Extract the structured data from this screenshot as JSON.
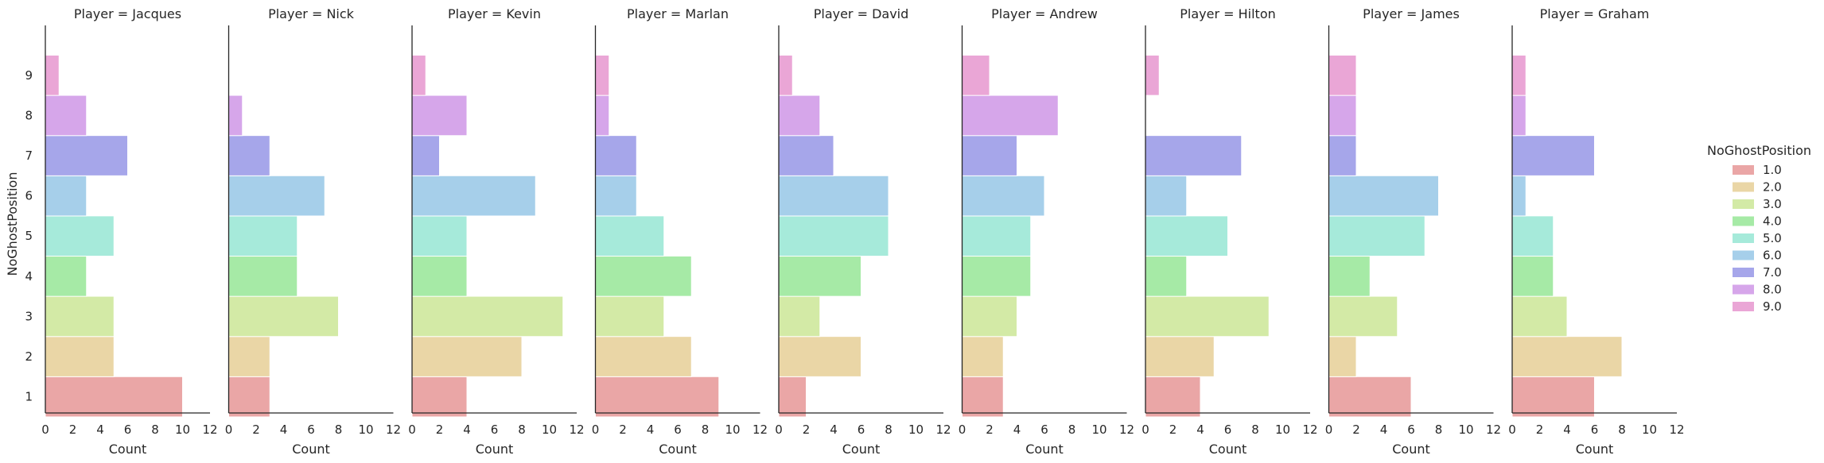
{
  "chart_data": {
    "type": "bar",
    "orientation": "horizontal",
    "facet_title_prefix": "Player = ",
    "ylabel": "NoGhostPosition",
    "xlabel": "Count",
    "xlim": [
      0,
      12
    ],
    "x_ticks": [
      0,
      2,
      4,
      6,
      8,
      10,
      12
    ],
    "y_ticks": [
      1,
      2,
      3,
      4,
      5,
      6,
      7,
      8,
      9
    ],
    "legend": {
      "title": "NoGhostPosition",
      "placement": "right",
      "entries": [
        "1.0",
        "2.0",
        "3.0",
        "4.0",
        "5.0",
        "6.0",
        "7.0",
        "8.0",
        "9.0"
      ]
    },
    "colors": [
      "#eaa6a6",
      "#ead6a6",
      "#d3eaa6",
      "#a6eaa6",
      "#a6eada",
      "#a6cfea",
      "#a6a6ea",
      "#d6a6ea",
      "#eaa6d6"
    ],
    "facets": [
      {
        "player": "Jacques",
        "bars": [
          {
            "position": 1,
            "count": 10
          },
          {
            "position": 2,
            "count": 5
          },
          {
            "position": 3,
            "count": 5
          },
          {
            "position": 4,
            "count": 3
          },
          {
            "position": 5,
            "count": 5
          },
          {
            "position": 6,
            "count": 3
          },
          {
            "position": 7,
            "count": 6
          },
          {
            "position": 8,
            "count": 3
          },
          {
            "position": 9,
            "count": 1
          }
        ]
      },
      {
        "player": "Nick",
        "bars": [
          {
            "position": 1,
            "count": 3
          },
          {
            "position": 2,
            "count": 3
          },
          {
            "position": 3,
            "count": 8
          },
          {
            "position": 4,
            "count": 5
          },
          {
            "position": 5,
            "count": 5
          },
          {
            "position": 6,
            "count": 7
          },
          {
            "position": 7,
            "count": 3
          },
          {
            "position": 8,
            "count": 1
          }
        ]
      },
      {
        "player": "Kevin",
        "bars": [
          {
            "position": 1,
            "count": 4
          },
          {
            "position": 2,
            "count": 8
          },
          {
            "position": 3,
            "count": 11
          },
          {
            "position": 4,
            "count": 4
          },
          {
            "position": 5,
            "count": 4
          },
          {
            "position": 6,
            "count": 9
          },
          {
            "position": 7,
            "count": 2
          },
          {
            "position": 8,
            "count": 4
          },
          {
            "position": 9,
            "count": 1
          }
        ]
      },
      {
        "player": "Marlan",
        "bars": [
          {
            "position": 1,
            "count": 9
          },
          {
            "position": 2,
            "count": 7
          },
          {
            "position": 3,
            "count": 5
          },
          {
            "position": 4,
            "count": 7
          },
          {
            "position": 5,
            "count": 5
          },
          {
            "position": 6,
            "count": 3
          },
          {
            "position": 7,
            "count": 3
          },
          {
            "position": 8,
            "count": 1
          },
          {
            "position": 9,
            "count": 1
          }
        ]
      },
      {
        "player": "David",
        "bars": [
          {
            "position": 1,
            "count": 2
          },
          {
            "position": 2,
            "count": 6
          },
          {
            "position": 3,
            "count": 3
          },
          {
            "position": 4,
            "count": 6
          },
          {
            "position": 5,
            "count": 8
          },
          {
            "position": 6,
            "count": 8
          },
          {
            "position": 7,
            "count": 4
          },
          {
            "position": 8,
            "count": 3
          },
          {
            "position": 9,
            "count": 1
          }
        ]
      },
      {
        "player": "Andrew",
        "bars": [
          {
            "position": 1,
            "count": 3
          },
          {
            "position": 2,
            "count": 3
          },
          {
            "position": 3,
            "count": 4
          },
          {
            "position": 4,
            "count": 5
          },
          {
            "position": 5,
            "count": 5
          },
          {
            "position": 6,
            "count": 6
          },
          {
            "position": 7,
            "count": 4
          },
          {
            "position": 8,
            "count": 7
          },
          {
            "position": 9,
            "count": 2
          }
        ]
      },
      {
        "player": "Hilton",
        "bars": [
          {
            "position": 1,
            "count": 4
          },
          {
            "position": 2,
            "count": 5
          },
          {
            "position": 3,
            "count": 9
          },
          {
            "position": 4,
            "count": 3
          },
          {
            "position": 5,
            "count": 6
          },
          {
            "position": 6,
            "count": 3
          },
          {
            "position": 7,
            "count": 7
          },
          {
            "position": 9,
            "count": 1
          }
        ]
      },
      {
        "player": "James",
        "bars": [
          {
            "position": 1,
            "count": 6
          },
          {
            "position": 2,
            "count": 2
          },
          {
            "position": 3,
            "count": 5
          },
          {
            "position": 4,
            "count": 3
          },
          {
            "position": 5,
            "count": 7
          },
          {
            "position": 6,
            "count": 8
          },
          {
            "position": 7,
            "count": 2
          },
          {
            "position": 8,
            "count": 2
          },
          {
            "position": 9,
            "count": 2
          }
        ]
      },
      {
        "player": "Graham",
        "bars": [
          {
            "position": 1,
            "count": 6
          },
          {
            "position": 2,
            "count": 8
          },
          {
            "position": 3,
            "count": 4
          },
          {
            "position": 4,
            "count": 3
          },
          {
            "position": 5,
            "count": 3
          },
          {
            "position": 6,
            "count": 1
          },
          {
            "position": 7,
            "count": 6
          },
          {
            "position": 8,
            "count": 1
          },
          {
            "position": 9,
            "count": 1
          }
        ]
      }
    ]
  }
}
